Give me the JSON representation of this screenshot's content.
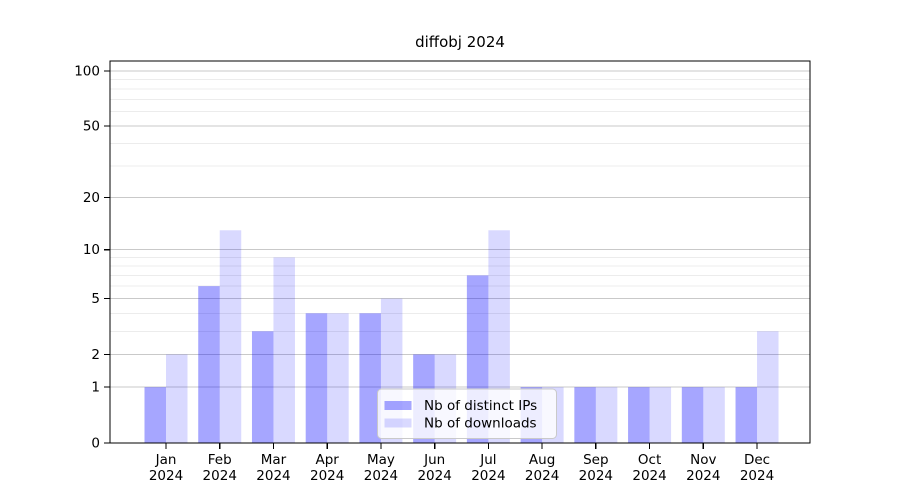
{
  "title": "diffobj 2024",
  "chart_data": {
    "type": "bar",
    "title": "diffobj 2024",
    "months": [
      "Jan",
      "Feb",
      "Mar",
      "Apr",
      "May",
      "Jun",
      "Jul",
      "Aug",
      "Sep",
      "Oct",
      "Nov",
      "Dec"
    ],
    "year": "2024",
    "series": [
      {
        "name": "Nb of distinct IPs",
        "color": "rgba(0,0,255,0.35)",
        "values": [
          1,
          6,
          3,
          4,
          4,
          2,
          7,
          1,
          1,
          1,
          1,
          1
        ]
      },
      {
        "name": "Nb of downloads",
        "color": "rgba(0,0,255,0.15)",
        "values": [
          2,
          13,
          9,
          4,
          5,
          2,
          13,
          1,
          1,
          1,
          1,
          3
        ]
      }
    ],
    "yscale": "log1p",
    "major_yticks": [
      0,
      1,
      2,
      5,
      10,
      20,
      50,
      100
    ],
    "minor_yticks": [
      3,
      4,
      6,
      7,
      8,
      9,
      30,
      40,
      60,
      70,
      80,
      90
    ],
    "ylim": [
      0,
      112
    ],
    "grid": true,
    "legend_position": "bottom-center"
  },
  "colors": {
    "major_grid": "#c9c9c9",
    "minor_grid": "#ececec",
    "axis": "#000000",
    "legend_border": "#c9c9c9",
    "legend_bg": "rgba(255,255,255,0.8)"
  }
}
